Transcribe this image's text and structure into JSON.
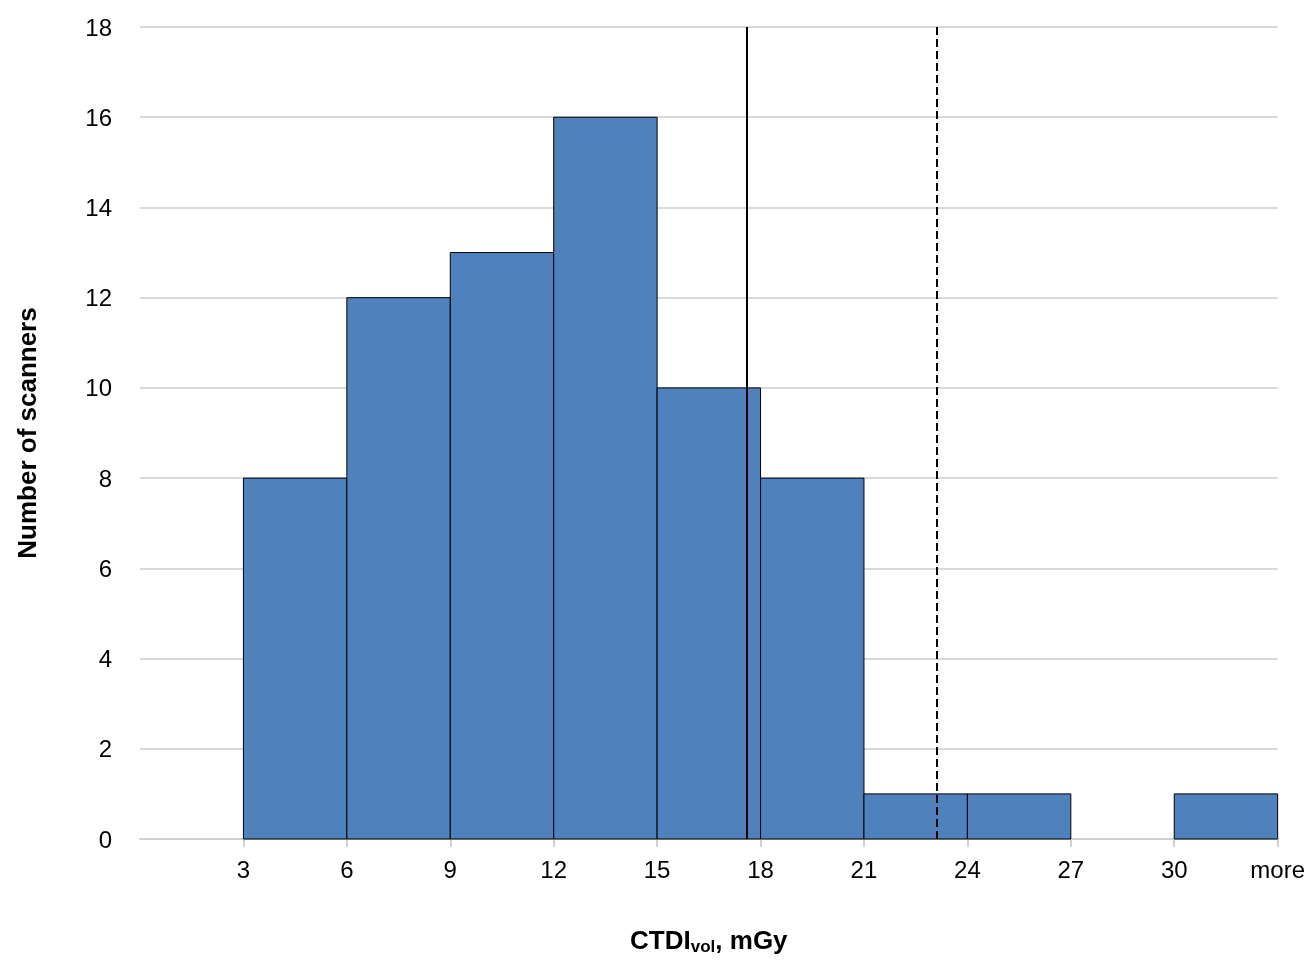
{
  "chart_data": {
    "type": "histogram",
    "xlabel": "CTDI$_{vol}$, mGy",
    "ylabel": "Number of scanners",
    "bins": [
      0,
      3,
      6,
      9,
      12,
      15,
      18,
      21,
      24,
      27,
      30,
      33
    ],
    "values": [
      0,
      8,
      12,
      13,
      16,
      10,
      8,
      1,
      1,
      0,
      1
    ],
    "color": "#4f81bd",
    "xlim": [
      0,
      33
    ],
    "xticks": [
      3,
      6,
      9,
      12,
      15,
      18,
      21,
      24,
      27,
      30,
      {
        "value": 33,
        "label": "more"
      }
    ],
    "ylim": [
      0,
      18
    ],
    "yticks": [
      0,
      2,
      4,
      6,
      8,
      10,
      12,
      14,
      16,
      18
    ],
    "grid": "y",
    "ref_lines": [
      {
        "axis": "x",
        "value": 17.6,
        "label": null,
        "color": "#000000",
        "line_style": "solid"
      },
      {
        "axis": "x",
        "value": 23.1,
        "label": null,
        "color": "#000000",
        "line_style": "dashed"
      }
    ]
  }
}
